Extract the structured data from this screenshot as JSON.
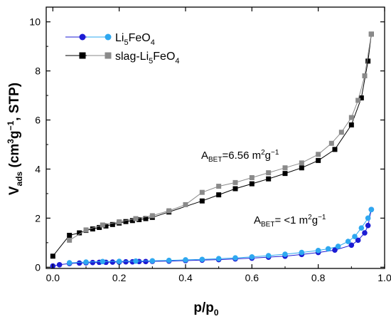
{
  "chart_data": {
    "type": "line",
    "xlabel": "p/p",
    "xlabel_sub": "0",
    "ylabel": "V",
    "ylabel_sub": "ads",
    "ylabel_units": "(cm3g−1, STP)",
    "xlim": [
      -0.02,
      1.0
    ],
    "ylim": [
      -0.05,
      10.6
    ],
    "xticks": [
      0.0,
      0.2,
      0.4,
      0.6,
      0.8,
      1.0
    ],
    "xtick_labels": [
      "0.0",
      "0.2",
      "0.4",
      "0.6",
      "0.8",
      "1.0"
    ],
    "yticks": [
      0,
      2,
      4,
      6,
      8,
      10
    ],
    "ytick_labels": [
      "0",
      "2",
      "4",
      "6",
      "8",
      "10"
    ],
    "grid": false,
    "legend_position": "top-left",
    "legend": [
      {
        "label": "Li5FeO4",
        "adsorption_color": "#1c1cd4",
        "desorption_color": "#2ea8f0",
        "marker": "circle"
      },
      {
        "label": "slag-Li5FeO4",
        "adsorption_color": "#000000",
        "desorption_color": "#8a8a8a",
        "marker": "square"
      }
    ],
    "annotations": [
      {
        "text": "A_BET=6.56 m²g⁻¹",
        "x": 0.46,
        "y": 4.45
      },
      {
        "text": "A_BET= <1 m²g⁻¹",
        "x": 0.64,
        "y": 1.65
      }
    ],
    "series": [
      {
        "name": "slag-Li5FeO4 (adsorption)",
        "color": "#000000",
        "marker": "square",
        "x": [
          0.0,
          0.05,
          0.08,
          0.1,
          0.12,
          0.14,
          0.16,
          0.18,
          0.2,
          0.22,
          0.24,
          0.26,
          0.28,
          0.3,
          0.35,
          0.45,
          0.5,
          0.55,
          0.6,
          0.65,
          0.7,
          0.75,
          0.8,
          0.85,
          0.9,
          0.93,
          0.95,
          0.96
        ],
        "y": [
          0.45,
          1.3,
          1.4,
          1.5,
          1.56,
          1.62,
          1.68,
          1.74,
          1.8,
          1.86,
          1.9,
          1.94,
          1.98,
          2.03,
          2.25,
          2.7,
          2.95,
          3.2,
          3.4,
          3.6,
          3.82,
          4.05,
          4.35,
          4.8,
          5.8,
          6.9,
          8.4,
          9.5
        ]
      },
      {
        "name": "slag-Li5FeO4 (desorption)",
        "color": "#8a8a8a",
        "marker": "square",
        "x": [
          0.96,
          0.94,
          0.92,
          0.9,
          0.87,
          0.84,
          0.8,
          0.75,
          0.7,
          0.65,
          0.6,
          0.55,
          0.5,
          0.45,
          0.4,
          0.35,
          0.3,
          0.25,
          0.2,
          0.15,
          0.1,
          0.05
        ],
        "y": [
          9.5,
          7.8,
          6.8,
          6.1,
          5.5,
          5.05,
          4.6,
          4.25,
          4.05,
          3.85,
          3.65,
          3.45,
          3.3,
          3.05,
          2.55,
          2.3,
          2.1,
          1.98,
          1.85,
          1.72,
          1.52,
          1.1
        ]
      },
      {
        "name": "Li5FeO4 (adsorption)",
        "color": "#1c1cd4",
        "marker": "circle",
        "x": [
          0.0,
          0.02,
          0.05,
          0.08,
          0.1,
          0.12,
          0.14,
          0.16,
          0.18,
          0.2,
          0.22,
          0.24,
          0.26,
          0.28,
          0.3,
          0.35,
          0.4,
          0.45,
          0.5,
          0.55,
          0.6,
          0.65,
          0.7,
          0.75,
          0.8,
          0.85,
          0.9,
          0.92,
          0.94,
          0.95,
          0.96
        ],
        "y": [
          0.05,
          0.1,
          0.15,
          0.17,
          0.18,
          0.19,
          0.2,
          0.2,
          0.21,
          0.21,
          0.22,
          0.22,
          0.23,
          0.23,
          0.24,
          0.25,
          0.27,
          0.29,
          0.31,
          0.34,
          0.37,
          0.41,
          0.45,
          0.52,
          0.6,
          0.7,
          0.9,
          1.1,
          1.4,
          1.7,
          2.35
        ]
      },
      {
        "name": "Li5FeO4 (desorption)",
        "color": "#2ea8f0",
        "marker": "circle",
        "x": [
          0.96,
          0.95,
          0.93,
          0.91,
          0.89,
          0.86,
          0.83,
          0.8,
          0.75,
          0.7,
          0.65,
          0.6,
          0.55,
          0.5,
          0.45,
          0.4,
          0.35,
          0.3,
          0.25,
          0.2,
          0.15,
          0.1,
          0.05
        ],
        "y": [
          2.35,
          2.0,
          1.6,
          1.25,
          1.05,
          0.85,
          0.75,
          0.68,
          0.6,
          0.53,
          0.47,
          0.42,
          0.38,
          0.35,
          0.32,
          0.3,
          0.28,
          0.26,
          0.25,
          0.24,
          0.23,
          0.21,
          0.18
        ]
      }
    ]
  }
}
